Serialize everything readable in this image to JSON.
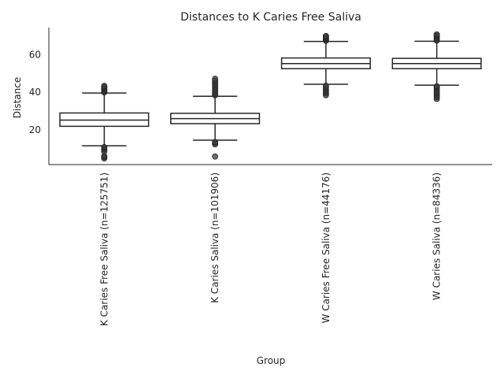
{
  "chart_data": {
    "type": "box",
    "title": "Distances to K Caries Free Saliva",
    "xlabel": "Group",
    "ylabel": "Distance",
    "ylim": [
      1.5,
      74.5
    ],
    "yticks": [
      20,
      40,
      60
    ],
    "grid": false,
    "categories": [
      "K Caries Free Saliva (n=125751)",
      "K Caries Saliva (n=101906)",
      "W Caries Free Saliva (n=44176)",
      "W Caries Saliva (n=84336)"
    ],
    "boxes": [
      {
        "label": "K Caries Free Saliva (n=125751)",
        "whisker_low": 11.5,
        "q1": 21.9,
        "median": 25.2,
        "q3": 29.0,
        "whisker_high": 39.6,
        "outliers": [
          4.8,
          5.5,
          6.0,
          8.5,
          9.5,
          10.2,
          10.8,
          40.0,
          40.5,
          41.0,
          41.5,
          42.0,
          42.5,
          43.0,
          43.4
        ]
      },
      {
        "label": "K Caries Saliva (n=101906)",
        "whisker_low": 14.5,
        "q1": 23.3,
        "median": 26.0,
        "q3": 28.8,
        "whisker_high": 37.9,
        "outliers": [
          5.8,
          12.3,
          13.0,
          13.5,
          38.5,
          39.0,
          40.0,
          41.0,
          42.0,
          43.0,
          44.0,
          45.0,
          46.2,
          47.2
        ]
      },
      {
        "label": "W Caries Free Saliva (n=44176)",
        "whisker_low": 44.3,
        "q1": 52.6,
        "median": 55.3,
        "q3": 58.3,
        "whisker_high": 67.1,
        "outliers": [
          38.5,
          39.5,
          40.5,
          41.5,
          42.5,
          43.5,
          67.5,
          68.0,
          68.5,
          69.0,
          69.5,
          70.0
        ]
      },
      {
        "label": "W Caries Saliva (n=84336)",
        "whisker_low": 43.8,
        "q1": 52.6,
        "median": 55.3,
        "q3": 58.1,
        "whisker_high": 67.2,
        "outliers": [
          36.5,
          37.5,
          38.5,
          39.5,
          40.5,
          41.5,
          42.5,
          43.2,
          67.6,
          68.2,
          68.8,
          69.5,
          70.2,
          70.8
        ]
      }
    ]
  }
}
